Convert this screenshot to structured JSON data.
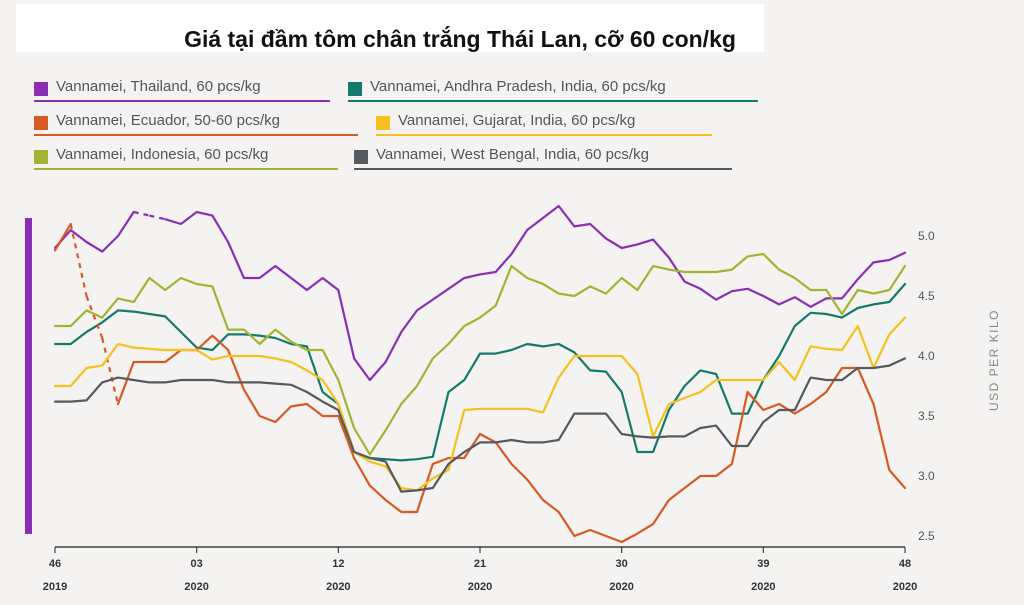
{
  "chart_data": {
    "type": "line",
    "title": "Giá tại đầm tôm chân trắng Thái Lan, cỡ 60 con/kg",
    "ylabel": "USD PER KILO",
    "ylim": [
      2.3,
      5.3
    ],
    "yticks": [
      "2.5",
      "3.0",
      "3.5",
      "4.0",
      "4.5",
      "5.0"
    ],
    "xticks": [
      {
        "week": "46",
        "year": "2019"
      },
      {
        "week": "03",
        "year": "2020"
      },
      {
        "week": "12",
        "year": "2020"
      },
      {
        "week": "21",
        "year": "2020"
      },
      {
        "week": "30",
        "year": "2020"
      },
      {
        "week": "39",
        "year": "2020"
      },
      {
        "week": "48",
        "year": "2020"
      }
    ],
    "grid": false,
    "legend_position": "top-left",
    "series": [
      {
        "name": "Vannamei, Thailand, 60 pcs/kg",
        "color": "#8a2fb4",
        "gaps": [
          [
            5,
            7
          ]
        ],
        "values": [
          4.9,
          5.05,
          4.95,
          4.87,
          5.0,
          5.2,
          5.17,
          5.14,
          5.1,
          5.2,
          5.17,
          4.95,
          4.65,
          4.65,
          4.75,
          4.65,
          4.55,
          4.65,
          4.55,
          3.98,
          3.8,
          3.95,
          4.2,
          4.38,
          4.47,
          4.56,
          4.65,
          4.68,
          4.7,
          4.85,
          5.05,
          5.15,
          5.25,
          5.08,
          5.1,
          4.98,
          4.9,
          4.93,
          4.97,
          4.82,
          4.62,
          4.56,
          4.47,
          4.54,
          4.56,
          4.5,
          4.43,
          4.49,
          4.41,
          4.48,
          4.48,
          4.64,
          4.78,
          4.8,
          4.86
        ]
      },
      {
        "name": "Vannamei, Andhra Pradesh, India, 60 pcs/kg",
        "color": "#147a6c",
        "values": [
          4.1,
          4.1,
          4.2,
          4.28,
          4.38,
          4.37,
          4.35,
          4.33,
          4.2,
          4.07,
          4.05,
          4.18,
          4.18,
          4.17,
          4.15,
          4.1,
          4.08,
          3.7,
          3.6,
          3.2,
          3.15,
          3.14,
          3.13,
          3.14,
          3.16,
          3.7,
          3.8,
          4.02,
          4.02,
          4.05,
          4.1,
          4.08,
          4.1,
          4.03,
          3.88,
          3.87,
          3.7,
          3.2,
          3.2,
          3.55,
          3.75,
          3.88,
          3.85,
          3.52,
          3.52,
          3.8,
          4.0,
          4.25,
          4.36,
          4.35,
          4.32,
          4.4,
          4.43,
          4.45,
          4.6
        ]
      },
      {
        "name": "Vannamei, Ecuador, 50-60 pcs/kg",
        "color": "#d65a25",
        "gaps": [
          [
            1,
            4
          ]
        ],
        "values": [
          4.88,
          5.1,
          4.5,
          4.15,
          3.6,
          3.95,
          3.95,
          3.95,
          4.05,
          4.05,
          4.17,
          4.05,
          3.72,
          3.5,
          3.45,
          3.58,
          3.6,
          3.5,
          3.5,
          3.15,
          2.92,
          2.8,
          2.7,
          2.7,
          3.1,
          3.15,
          3.15,
          3.35,
          3.28,
          3.1,
          2.97,
          2.8,
          2.7,
          2.5,
          2.55,
          2.5,
          2.45,
          2.52,
          2.6,
          2.8,
          2.9,
          3.0,
          3.0,
          3.1,
          3.7,
          3.55,
          3.6,
          3.52,
          3.6,
          3.7,
          3.9,
          3.9,
          3.6,
          3.05,
          2.9
        ]
      },
      {
        "name": "Vannamei, Gujarat, India, 60 pcs/kg",
        "color": "#f5c11e",
        "values": [
          3.75,
          3.75,
          3.9,
          3.92,
          4.1,
          4.07,
          4.06,
          4.05,
          4.05,
          4.05,
          3.97,
          4.0,
          4.0,
          4.0,
          3.98,
          3.95,
          3.88,
          3.8,
          3.6,
          3.2,
          3.12,
          3.08,
          2.9,
          2.88,
          2.98,
          3.05,
          3.55,
          3.56,
          3.56,
          3.56,
          3.56,
          3.53,
          3.82,
          4.0,
          4.0,
          4.0,
          4.0,
          3.85,
          3.33,
          3.6,
          3.65,
          3.7,
          3.8,
          3.8,
          3.8,
          3.8,
          3.95,
          3.8,
          4.08,
          4.06,
          4.05,
          4.25,
          3.9,
          4.18,
          4.32
        ]
      },
      {
        "name": "Vannamei, Indonesia, 60 pcs/kg",
        "color": "#a2b434",
        "values": [
          4.25,
          4.25,
          4.38,
          4.32,
          4.48,
          4.45,
          4.65,
          4.55,
          4.65,
          4.6,
          4.58,
          4.22,
          4.22,
          4.1,
          4.22,
          4.12,
          4.05,
          4.05,
          3.8,
          3.4,
          3.18,
          3.38,
          3.6,
          3.75,
          3.98,
          4.1,
          4.25,
          4.32,
          4.42,
          4.75,
          4.65,
          4.6,
          4.52,
          4.5,
          4.58,
          4.52,
          4.65,
          4.55,
          4.75,
          4.72,
          4.7,
          4.7,
          4.7,
          4.72,
          4.83,
          4.85,
          4.72,
          4.65,
          4.55,
          4.55,
          4.35,
          4.55,
          4.52,
          4.55,
          4.75
        ]
      },
      {
        "name": "Vannamei, West Bengal, India, 60 pcs/kg",
        "color": "#555a5f",
        "values": [
          3.62,
          3.62,
          3.63,
          3.78,
          3.82,
          3.8,
          3.78,
          3.78,
          3.8,
          3.8,
          3.8,
          3.78,
          3.78,
          3.78,
          3.77,
          3.76,
          3.7,
          3.62,
          3.55,
          3.2,
          3.15,
          3.12,
          2.87,
          2.88,
          2.9,
          3.1,
          3.2,
          3.28,
          3.28,
          3.3,
          3.28,
          3.28,
          3.3,
          3.52,
          3.52,
          3.52,
          3.35,
          3.33,
          3.32,
          3.33,
          3.33,
          3.4,
          3.42,
          3.25,
          3.25,
          3.45,
          3.55,
          3.55,
          3.82,
          3.8,
          3.8,
          3.9,
          3.9,
          3.92,
          3.98
        ]
      }
    ]
  }
}
